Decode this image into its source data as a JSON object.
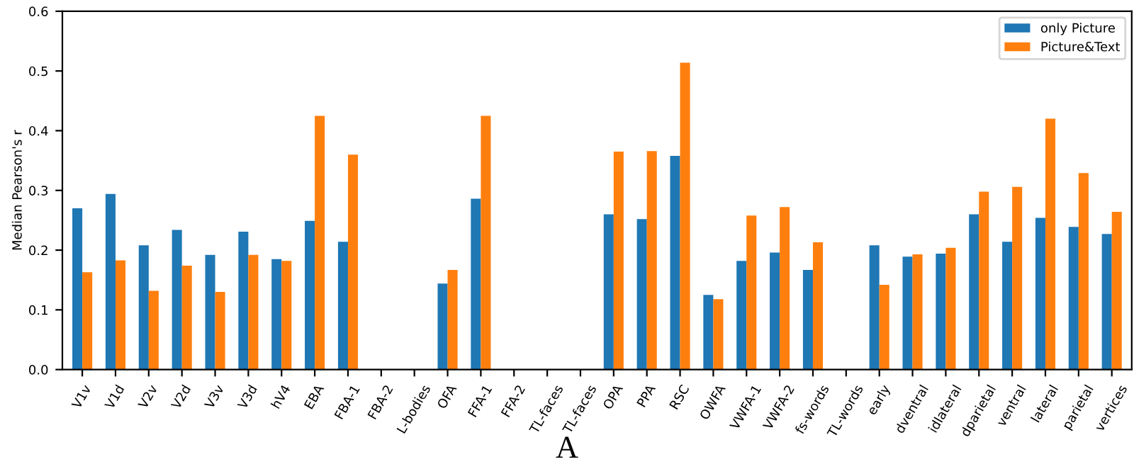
{
  "chart_data": {
    "type": "bar",
    "ylabel": "Median Pearson's r",
    "annotations": [
      "A"
    ],
    "categories": [
      "V1v",
      "V1d",
      "V2v",
      "V2d",
      "V3v",
      "V3d",
      "hV4",
      "EBA",
      "FBA-1",
      "FBA-2",
      "L-bodies",
      "OFA",
      "FFA-1",
      "FFA-2",
      "TL-faces",
      "TL-faces",
      "OPA",
      "PPA",
      "RSC",
      "OWFA",
      "VWFA-1",
      "VWFA-2",
      "fs-words",
      "TL-words",
      "early",
      "dventral",
      "idlateral",
      "dparietal",
      "ventral",
      "lateral",
      "parietal",
      "vertices"
    ],
    "series": [
      {
        "name": "only Picture",
        "color": "#1f77b4",
        "values": [
          0.27,
          0.294,
          0.208,
          0.234,
          0.192,
          0.231,
          0.185,
          0.249,
          0.214,
          null,
          null,
          0.144,
          0.286,
          null,
          null,
          null,
          0.26,
          0.252,
          0.358,
          0.125,
          0.182,
          0.196,
          0.167,
          null,
          0.208,
          0.189,
          0.194,
          0.26,
          0.214,
          0.254,
          0.239,
          0.227
        ]
      },
      {
        "name": "Picture&Text",
        "color": "#ff7f0e",
        "values": [
          0.163,
          0.183,
          0.132,
          0.174,
          0.13,
          0.192,
          0.182,
          0.425,
          0.36,
          null,
          null,
          0.167,
          0.425,
          null,
          null,
          null,
          0.365,
          0.366,
          0.514,
          0.118,
          0.258,
          0.272,
          0.213,
          null,
          0.142,
          0.193,
          0.204,
          0.298,
          0.306,
          0.42,
          0.329,
          0.264
        ]
      }
    ],
    "ylim": [
      0,
      0.6
    ],
    "yticks": [
      {
        "value": 0,
        "label": "0.0"
      },
      {
        "value": 0.1,
        "label": "0.1"
      },
      {
        "value": 0.2,
        "label": "0.2"
      },
      {
        "value": 0.3,
        "label": "0.3"
      },
      {
        "value": 0.4,
        "label": "0.4"
      },
      {
        "value": 0.5,
        "label": "0.5"
      },
      {
        "value": 0.6,
        "label": "0.6"
      }
    ],
    "legend": "top right",
    "grid": false
  }
}
